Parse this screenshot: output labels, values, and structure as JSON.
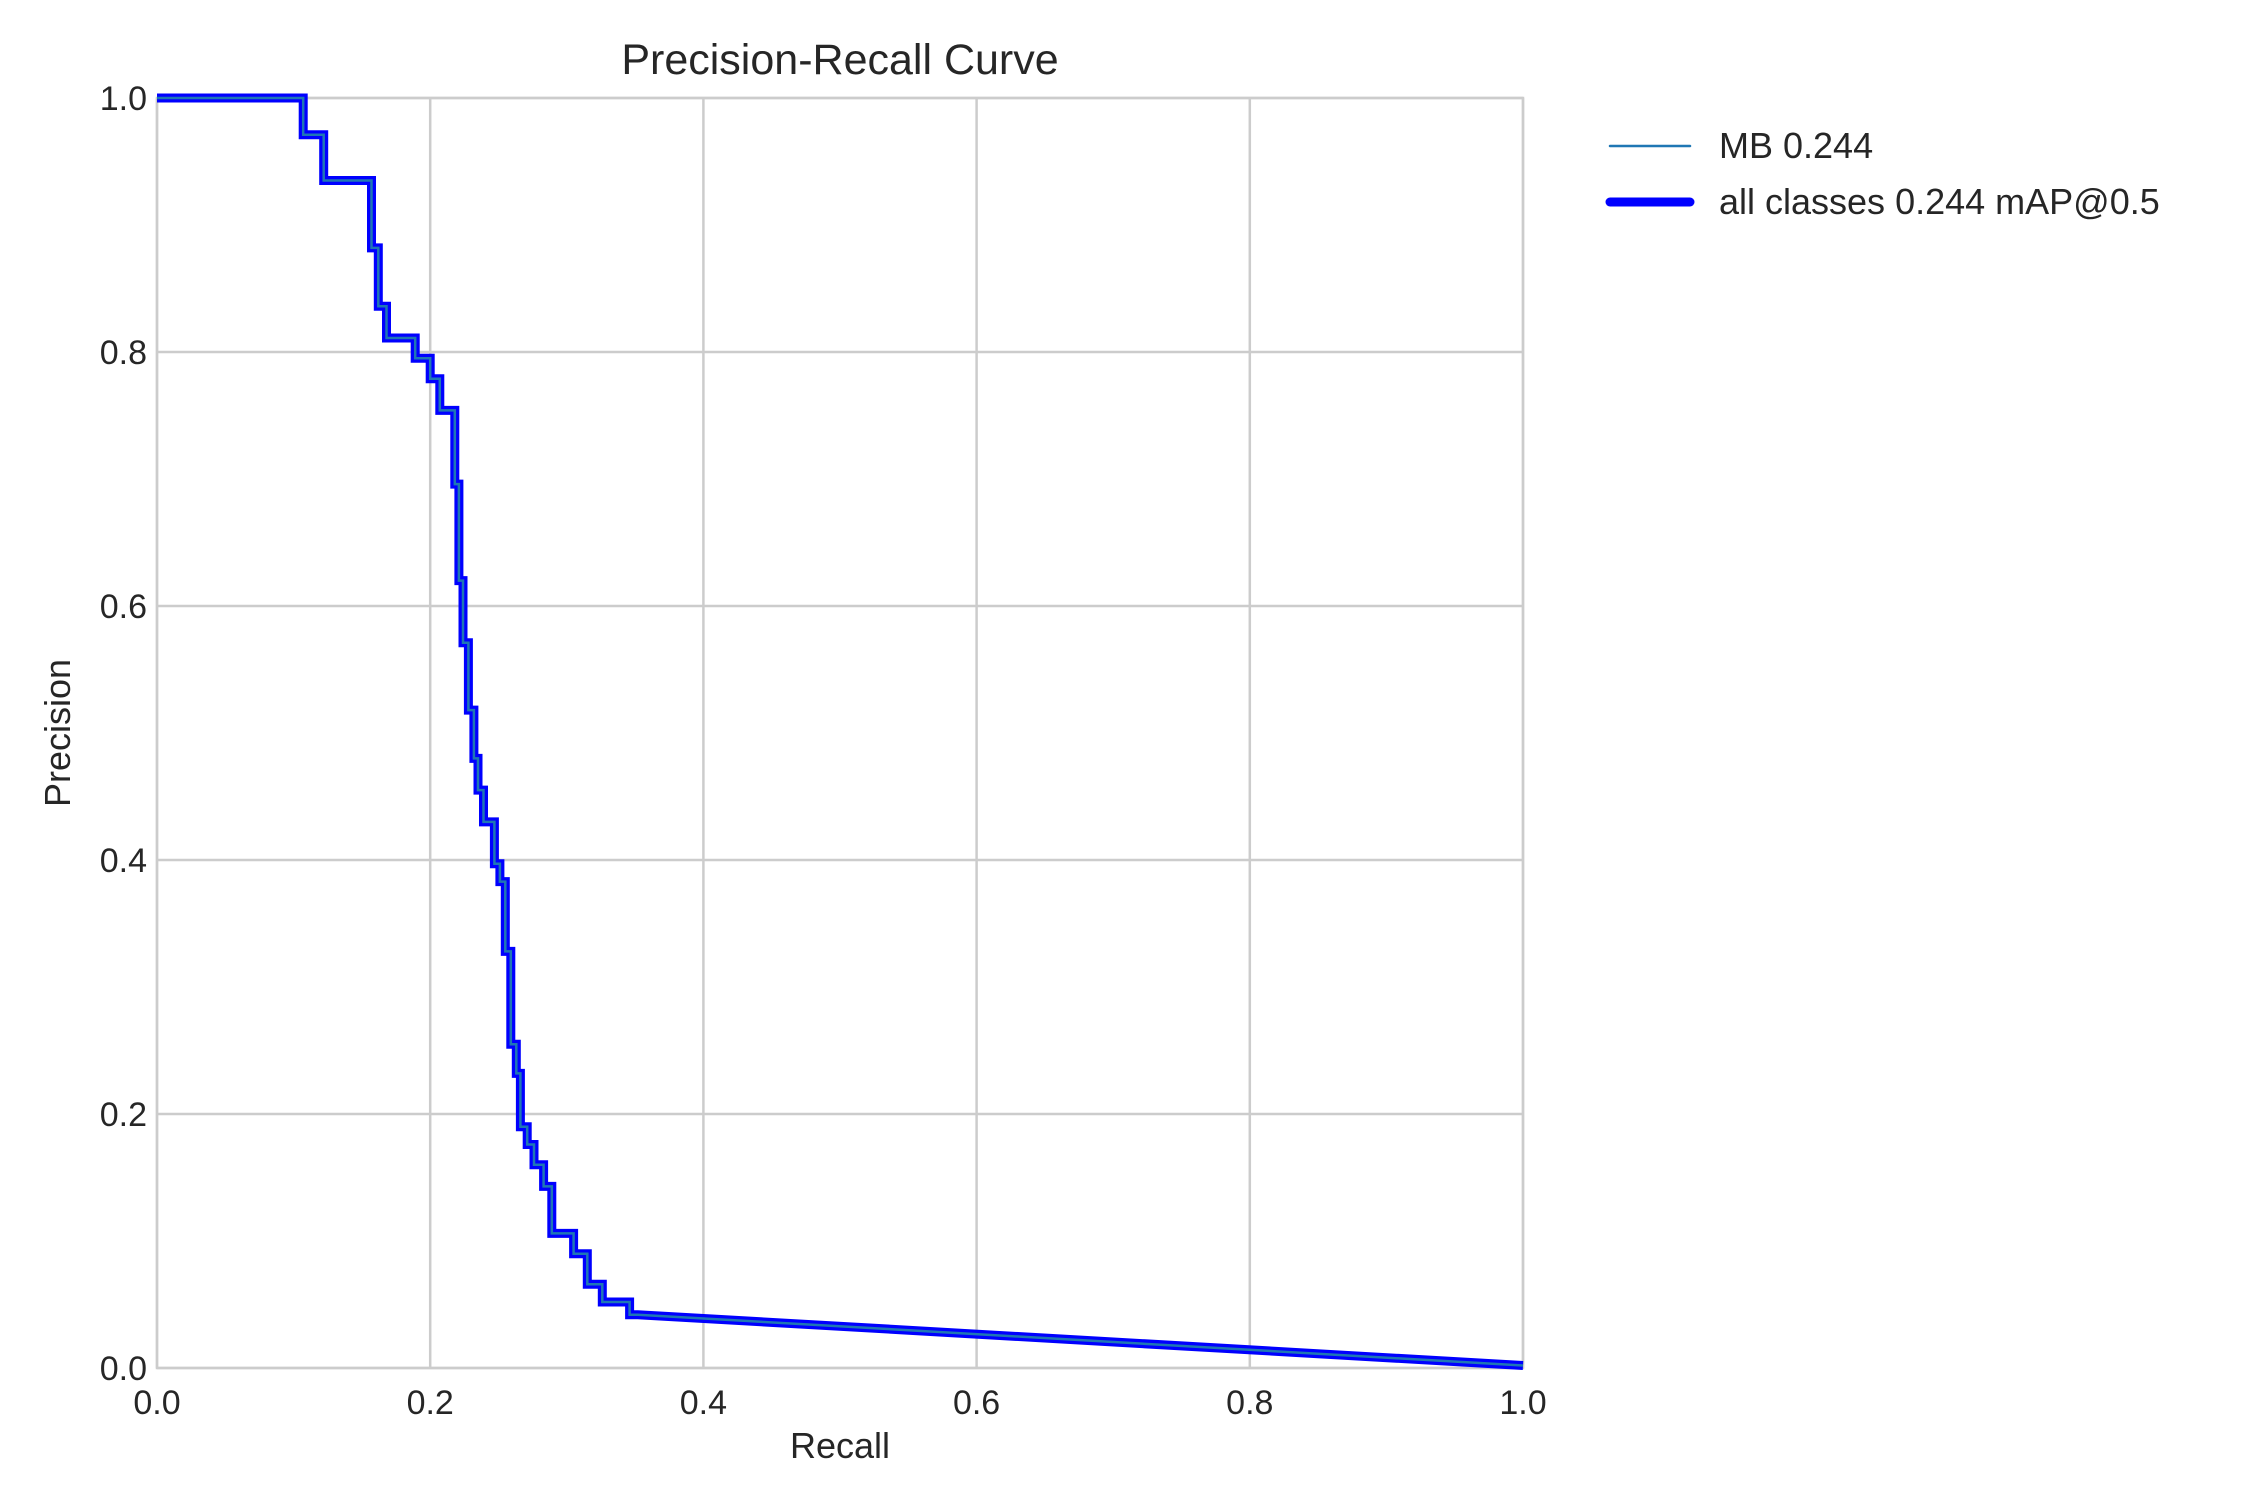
{
  "chart_data": {
    "type": "line",
    "title": "Precision-Recall Curve",
    "xlabel": "Recall",
    "ylabel": "Precision",
    "xlim": [
      0,
      1
    ],
    "ylim": [
      0,
      1
    ],
    "xticks": [
      "0.0",
      "0.2",
      "0.4",
      "0.6",
      "0.8",
      "1.0"
    ],
    "yticks": [
      "0.0",
      "0.2",
      "0.4",
      "0.6",
      "0.8",
      "1.0"
    ],
    "grid": true,
    "legend_position": "outside-top-right",
    "series": [
      {
        "name": "MB 0.244",
        "color": "#1f77b4",
        "style": "thin",
        "x": [
          0.0,
          0.107,
          0.107,
          0.122,
          0.122,
          0.157,
          0.157,
          0.162,
          0.162,
          0.168,
          0.168,
          0.189,
          0.189,
          0.2,
          0.2,
          0.207,
          0.207,
          0.218,
          0.218,
          0.221,
          0.221,
          0.224,
          0.224,
          0.228,
          0.228,
          0.232,
          0.232,
          0.235,
          0.235,
          0.239,
          0.239,
          0.247,
          0.247,
          0.251,
          0.251,
          0.255,
          0.255,
          0.259,
          0.259,
          0.263,
          0.263,
          0.266,
          0.266,
          0.271,
          0.271,
          0.276,
          0.276,
          0.283,
          0.283,
          0.289,
          0.289,
          0.305,
          0.305,
          0.315,
          0.315,
          0.326,
          0.326,
          0.346,
          0.346,
          0.352,
          1.0
        ],
        "y": [
          1.0,
          1.0,
          0.971,
          0.971,
          0.935,
          0.935,
          0.882,
          0.882,
          0.836,
          0.836,
          0.811,
          0.811,
          0.795,
          0.795,
          0.779,
          0.779,
          0.754,
          0.754,
          0.696,
          0.696,
          0.62,
          0.62,
          0.571,
          0.571,
          0.518,
          0.518,
          0.48,
          0.48,
          0.455,
          0.455,
          0.43,
          0.43,
          0.397,
          0.397,
          0.383,
          0.383,
          0.328,
          0.328,
          0.255,
          0.255,
          0.232,
          0.232,
          0.19,
          0.19,
          0.176,
          0.176,
          0.16,
          0.16,
          0.143,
          0.143,
          0.106,
          0.106,
          0.09,
          0.09,
          0.066,
          0.066,
          0.052,
          0.052,
          0.042,
          0.042,
          0.002
        ]
      },
      {
        "name": "all classes 0.244 mAP@0.5",
        "color": "#0000ff",
        "style": "thick",
        "x": [
          0.0,
          0.107,
          0.107,
          0.122,
          0.122,
          0.157,
          0.157,
          0.162,
          0.162,
          0.168,
          0.168,
          0.189,
          0.189,
          0.2,
          0.2,
          0.207,
          0.207,
          0.218,
          0.218,
          0.221,
          0.221,
          0.224,
          0.224,
          0.228,
          0.228,
          0.232,
          0.232,
          0.235,
          0.235,
          0.239,
          0.239,
          0.247,
          0.247,
          0.251,
          0.251,
          0.255,
          0.255,
          0.259,
          0.259,
          0.263,
          0.263,
          0.266,
          0.266,
          0.271,
          0.271,
          0.276,
          0.276,
          0.283,
          0.283,
          0.289,
          0.289,
          0.305,
          0.305,
          0.315,
          0.315,
          0.326,
          0.326,
          0.346,
          0.346,
          0.352,
          1.0
        ],
        "y": [
          1.0,
          1.0,
          0.971,
          0.971,
          0.935,
          0.935,
          0.882,
          0.882,
          0.836,
          0.836,
          0.811,
          0.811,
          0.795,
          0.795,
          0.779,
          0.779,
          0.754,
          0.754,
          0.696,
          0.696,
          0.62,
          0.62,
          0.571,
          0.571,
          0.518,
          0.518,
          0.48,
          0.48,
          0.455,
          0.455,
          0.43,
          0.43,
          0.397,
          0.397,
          0.383,
          0.383,
          0.328,
          0.328,
          0.255,
          0.255,
          0.232,
          0.232,
          0.19,
          0.19,
          0.176,
          0.176,
          0.16,
          0.16,
          0.143,
          0.143,
          0.106,
          0.106,
          0.09,
          0.09,
          0.066,
          0.066,
          0.052,
          0.052,
          0.042,
          0.042,
          0.002
        ]
      }
    ]
  }
}
